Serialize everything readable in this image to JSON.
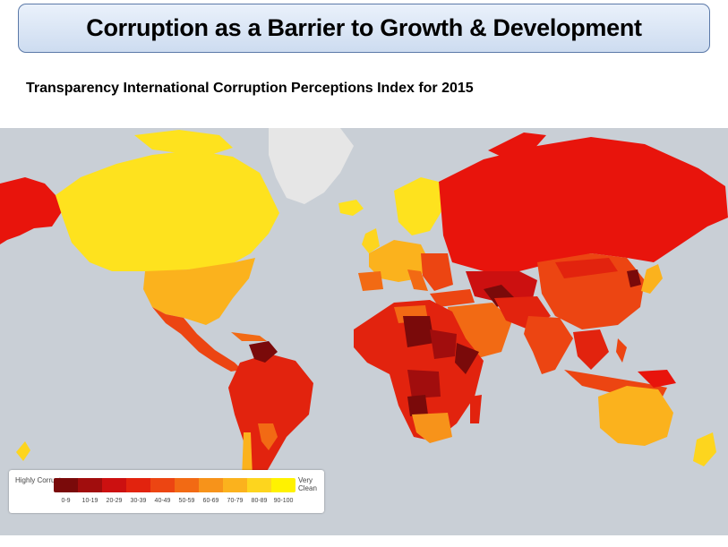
{
  "header": {
    "title": "Corruption as a Barrier to Growth & Development",
    "subtitle": "Transparency International Corruption Perceptions Index for 2015"
  },
  "map": {
    "ocean_color": "#c9cfd6",
    "no_data_color": "#e6e6e6",
    "legend": {
      "low_label": "Highly Corrupt",
      "high_label": "Very Clean",
      "ranges": [
        "0-9",
        "10-19",
        "20-29",
        "30-39",
        "40-49",
        "50-59",
        "60-69",
        "70-79",
        "80-89",
        "90-100"
      ],
      "colors": [
        "#7a0a0a",
        "#a10d0d",
        "#cc1010",
        "#e2230e",
        "#ec4512",
        "#f26a14",
        "#f7931a",
        "#fbb21d",
        "#fdd51e",
        "#fff200"
      ]
    }
  }
}
